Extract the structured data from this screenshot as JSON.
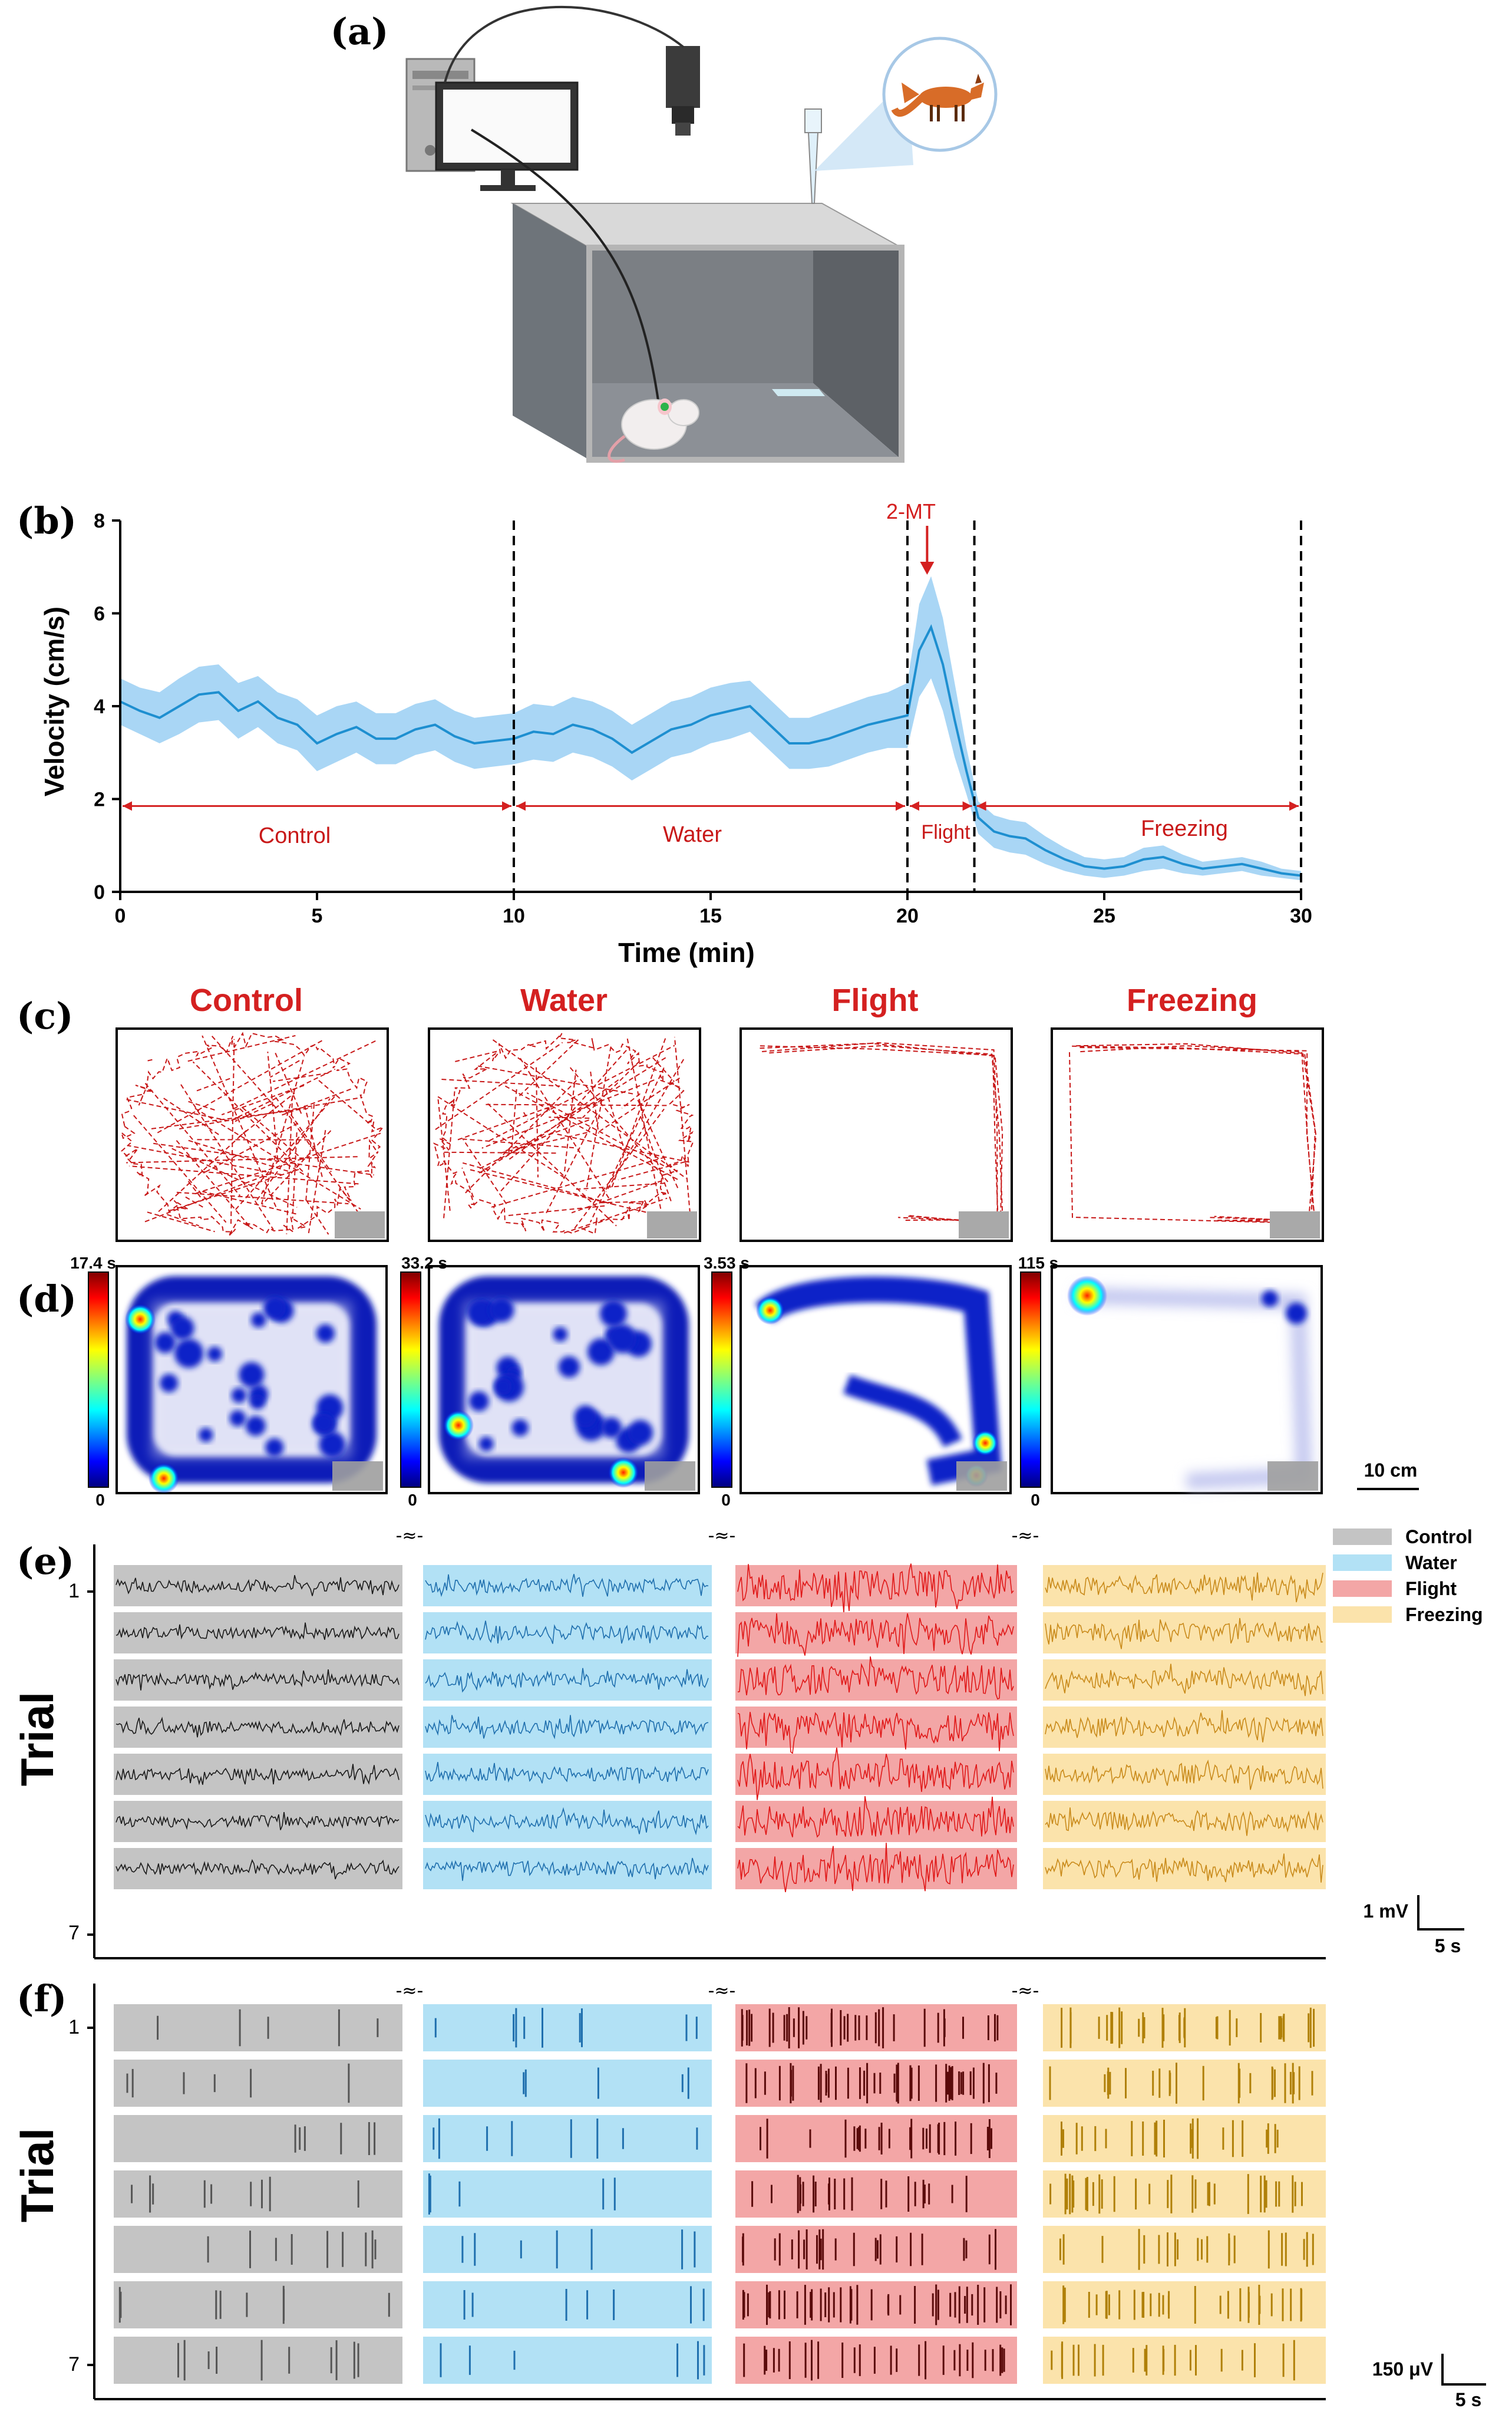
{
  "colors": {
    "red": "#d42020",
    "darkred": "#c81818",
    "band": "#a9d6f5",
    "line": "#1e8fd0",
    "control_bg": "#c4c4c4",
    "water_bg": "#b2e1f5",
    "flight_bg": "#f3a6a6",
    "freezing_bg": "#fbe3ab",
    "control_trace": "#1a1a1a",
    "water_trace": "#1f6fae",
    "flight_trace": "#e01818",
    "freezing_trace": "#c98a1a"
  },
  "panel_a": {
    "label": "(a)",
    "icons": [
      "computer-icon",
      "camera-icon",
      "pipette-icon",
      "fox-icon",
      "arena-box",
      "rat-icon"
    ]
  },
  "panel_b": {
    "label": "(b)",
    "annotation": "2-MT",
    "phase_labels": [
      "Control",
      "Water",
      "Flight",
      "Freezing"
    ]
  },
  "chart_data": {
    "type": "line",
    "title": "",
    "xlabel": "Time (min)",
    "ylabel": "Velocity (cm/s)",
    "xlim": [
      0,
      30
    ],
    "ylim": [
      0,
      8
    ],
    "xticks": [
      "0",
      "5",
      "10",
      "15",
      "20",
      "25",
      "30"
    ],
    "yticks": [
      "0",
      "2",
      "4",
      "6",
      "8"
    ],
    "vlines": [
      10,
      20,
      21.7,
      30
    ],
    "annotation": {
      "text": "2-MT",
      "x": 20.5
    },
    "phases": [
      {
        "name": "Control",
        "start": 0,
        "end": 10
      },
      {
        "name": "Water",
        "start": 10,
        "end": 20
      },
      {
        "name": "Flight",
        "start": 20,
        "end": 21.7
      },
      {
        "name": "Freezing",
        "start": 21.7,
        "end": 30
      }
    ],
    "series": [
      {
        "name": "mean velocity",
        "x": [
          0,
          0.5,
          1,
          1.5,
          2,
          2.5,
          3,
          3.5,
          4,
          4.5,
          5,
          5.5,
          6,
          6.5,
          7,
          7.5,
          8,
          8.5,
          9,
          9.5,
          10,
          10.5,
          11,
          11.5,
          12,
          12.5,
          13,
          13.5,
          14,
          14.5,
          15,
          15.5,
          16,
          16.5,
          17,
          17.5,
          18,
          18.5,
          19,
          19.5,
          20,
          20.3,
          20.6,
          20.9,
          21.2,
          21.5,
          21.8,
          22.2,
          22.6,
          23,
          23.5,
          24,
          24.5,
          25,
          25.5,
          26,
          26.5,
          27,
          27.5,
          28,
          28.5,
          29,
          29.5,
          30
        ],
        "y": [
          4.1,
          3.9,
          3.75,
          4.0,
          4.25,
          4.3,
          3.9,
          4.1,
          3.75,
          3.6,
          3.2,
          3.4,
          3.55,
          3.3,
          3.3,
          3.5,
          3.6,
          3.35,
          3.2,
          3.25,
          3.3,
          3.45,
          3.4,
          3.6,
          3.5,
          3.3,
          3.0,
          3.25,
          3.5,
          3.6,
          3.8,
          3.9,
          4.0,
          3.6,
          3.2,
          3.2,
          3.3,
          3.45,
          3.6,
          3.7,
          3.8,
          5.2,
          5.7,
          4.9,
          3.7,
          2.6,
          1.6,
          1.3,
          1.2,
          1.15,
          0.9,
          0.7,
          0.55,
          0.5,
          0.55,
          0.7,
          0.75,
          0.6,
          0.5,
          0.55,
          0.6,
          0.5,
          0.4,
          0.35
        ],
        "err": [
          0.5,
          0.5,
          0.55,
          0.6,
          0.6,
          0.6,
          0.6,
          0.55,
          0.55,
          0.55,
          0.6,
          0.6,
          0.55,
          0.55,
          0.55,
          0.55,
          0.55,
          0.55,
          0.55,
          0.55,
          0.55,
          0.6,
          0.6,
          0.6,
          0.6,
          0.6,
          0.6,
          0.6,
          0.6,
          0.6,
          0.6,
          0.6,
          0.55,
          0.55,
          0.55,
          0.55,
          0.6,
          0.6,
          0.6,
          0.6,
          0.7,
          1.0,
          1.1,
          1.0,
          0.8,
          0.5,
          0.35,
          0.35,
          0.35,
          0.35,
          0.3,
          0.25,
          0.2,
          0.2,
          0.2,
          0.25,
          0.25,
          0.2,
          0.15,
          0.15,
          0.15,
          0.15,
          0.1,
          0.1
        ]
      }
    ]
  },
  "panel_c": {
    "label": "(c)",
    "titles": [
      "Control",
      "Water",
      "Flight",
      "Freezing"
    ]
  },
  "panel_d": {
    "label": "(d)",
    "max_labels": [
      "17.4 s",
      "33.2 s",
      "3.53 s",
      "115 s"
    ],
    "min_label": "0",
    "scale_label": "10 cm"
  },
  "panel_e": {
    "label": "(e)",
    "ylabel": "Trial",
    "trial_first": "1",
    "trial_last": "7",
    "legend": [
      "Control",
      "Water",
      "Flight",
      "Freezing"
    ],
    "scale_v": "1 mV",
    "scale_t": "5 s"
  },
  "panel_f": {
    "label": "(f)",
    "ylabel": "Trial",
    "trial_first": "1",
    "trial_last": "7",
    "scale_v": "150 μV",
    "scale_t": "5 s"
  }
}
